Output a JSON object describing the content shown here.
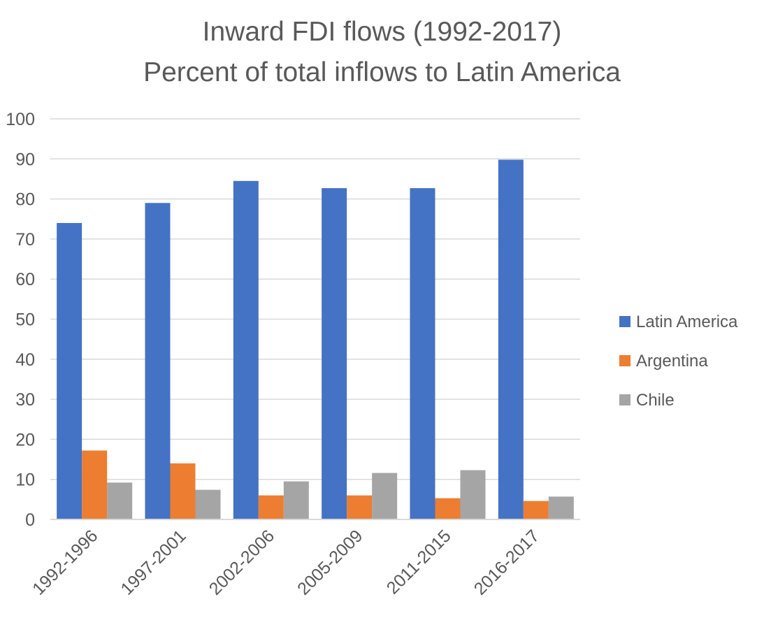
{
  "chart_data": {
    "type": "bar",
    "title": [
      "Inward FDI flows (1992-2017)",
      "Percent of total inflows to Latin America"
    ],
    "xlabel": "",
    "ylabel": "",
    "ylim": [
      0,
      100
    ],
    "yticks": [
      0,
      10,
      20,
      30,
      40,
      50,
      60,
      70,
      80,
      90,
      100
    ],
    "grid": true,
    "legend_position": "right",
    "categories": [
      "1992-1996",
      "1997-2001",
      "2002-2006",
      "2005-2009",
      "2011-2015",
      "2016-2017"
    ],
    "series": [
      {
        "name": "Latin America",
        "color": "#4472C4",
        "values": [
          74,
          79,
          84.5,
          82.7,
          82.7,
          89.8
        ]
      },
      {
        "name": "Argentina",
        "color": "#ED7D31",
        "values": [
          17.2,
          14,
          6,
          6,
          5.3,
          4.6
        ]
      },
      {
        "name": "Chile",
        "color": "#A5A5A5",
        "values": [
          9.2,
          7.4,
          9.5,
          11.6,
          12.3,
          5.7
        ]
      }
    ]
  }
}
